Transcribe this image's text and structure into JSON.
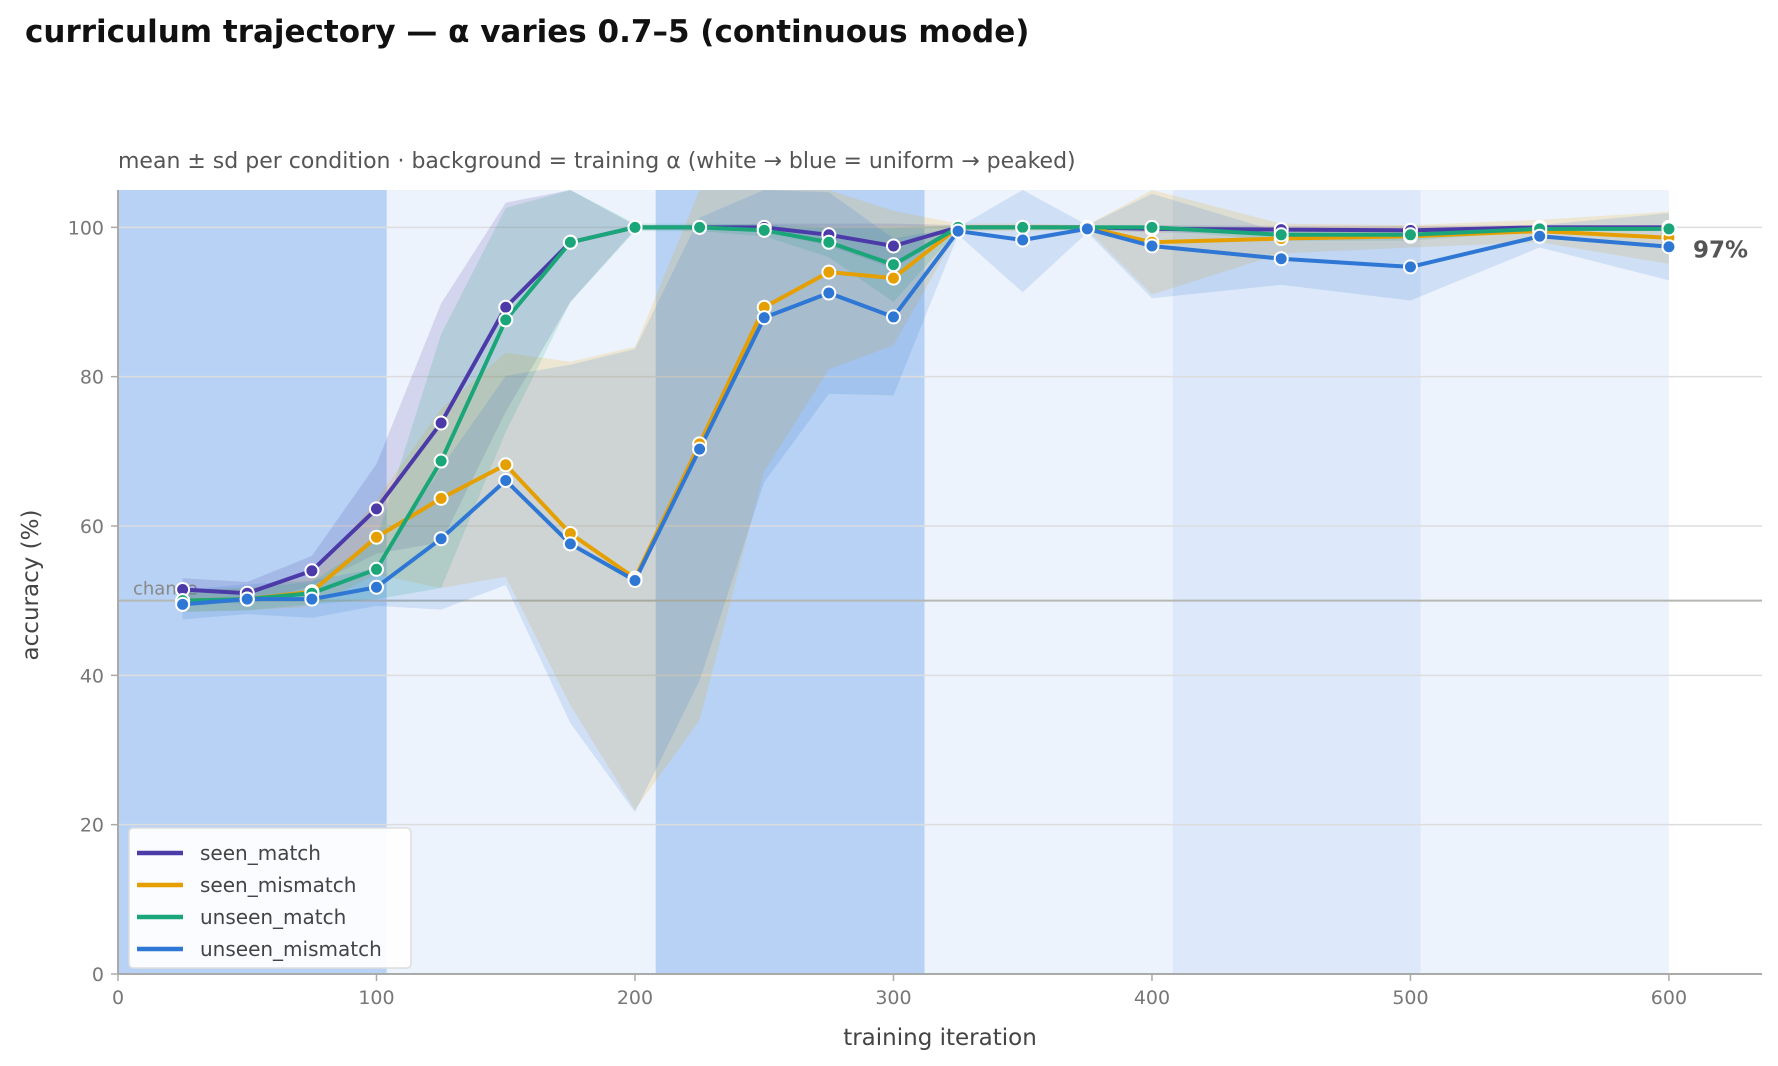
{
  "chart_data": {
    "type": "line",
    "title": "curriculum trajectory — α varies 0.7–5 (continuous mode)",
    "subtitle": "mean ± sd per condition · background = training α (white → blue = uniform → peaked)",
    "xlabel": "training iteration",
    "ylabel": "accuracy (%)",
    "xlim": [
      0,
      636
    ],
    "ylim": [
      0,
      105
    ],
    "xticks": [
      0,
      100,
      200,
      300,
      400,
      500,
      600
    ],
    "yticks": [
      0,
      20,
      40,
      60,
      80,
      100
    ],
    "grid": "horizontal",
    "legend_position": "lower-left",
    "chance": {
      "label": "chance",
      "value": 50
    },
    "end_label": "97%",
    "background_bands": [
      {
        "x0": 0,
        "x1": 104,
        "shade": "peaked",
        "color": "#b7d2f4"
      },
      {
        "x0": 104,
        "x1": 208,
        "shade": "uniform",
        "color": "#edf3fc"
      },
      {
        "x0": 208,
        "x1": 312,
        "shade": "peaked",
        "color": "#b7d2f4"
      },
      {
        "x0": 312,
        "x1": 408,
        "shade": "uniform",
        "color": "#edf3fc"
      },
      {
        "x0": 408,
        "x1": 504,
        "shade": "intermediate",
        "color": "#dde9fa"
      },
      {
        "x0": 504,
        "x1": 600,
        "shade": "uniform",
        "color": "#edf3fc"
      }
    ],
    "x": [
      25,
      50,
      75,
      100,
      125,
      150,
      175,
      200,
      225,
      250,
      275,
      300,
      325,
      350,
      375,
      400,
      450,
      500,
      550,
      600
    ],
    "series": [
      {
        "name": "seen_match",
        "color": "#4b3aa8",
        "values": [
          51.5,
          51.0,
          54.0,
          62.3,
          73.8,
          89.3,
          98.0,
          100,
          100,
          100,
          99.0,
          97.5,
          100,
          100,
          100,
          99.8,
          99.7,
          99.6,
          100,
          100
        ],
        "sd": [
          1.5,
          1.5,
          2.0,
          6.0,
          16.0,
          14.0,
          8.0,
          0.3,
          0.3,
          0.5,
          1.5,
          3.0,
          0.3,
          0.3,
          0.3,
          0.5,
          0.5,
          0.6,
          0.3,
          0.3
        ]
      },
      {
        "name": "seen_mismatch",
        "color": "#e69f00",
        "values": [
          50.0,
          50.2,
          51.2,
          58.5,
          63.7,
          68.2,
          59.0,
          53.0,
          71.0,
          89.3,
          94.0,
          93.2,
          100,
          100,
          100,
          98.0,
          98.5,
          98.8,
          99.5,
          98.6
        ],
        "sd": [
          1.5,
          1.5,
          2.0,
          5.0,
          12.0,
          15.0,
          23.0,
          31.0,
          37.0,
          22.0,
          13.0,
          9.0,
          0.5,
          0.5,
          0.3,
          7.0,
          2.0,
          1.5,
          1.5,
          3.5
        ]
      },
      {
        "name": "unseen_match",
        "color": "#1aa678",
        "values": [
          50.0,
          50.2,
          51.0,
          54.2,
          68.7,
          87.6,
          98.0,
          100,
          100,
          99.6,
          98.0,
          95.0,
          100,
          100,
          100,
          100,
          99.0,
          99.0,
          99.8,
          99.8
        ],
        "sd": [
          1.5,
          1.5,
          1.5,
          4.0,
          17.0,
          15.0,
          8.0,
          0.5,
          0.5,
          0.8,
          2.0,
          5.0,
          0.3,
          0.3,
          0.3,
          0.3,
          0.8,
          0.8,
          0.3,
          0.3
        ]
      },
      {
        "name": "unseen_mismatch",
        "color": "#2f77d4",
        "values": [
          49.5,
          50.2,
          50.2,
          51.8,
          58.3,
          66.1,
          57.6,
          52.7,
          70.3,
          87.9,
          91.2,
          88.0,
          99.5,
          98.3,
          99.8,
          97.5,
          95.8,
          94.7,
          98.8,
          97.4
        ],
        "sd": [
          2.0,
          2.0,
          2.5,
          2.5,
          9.5,
          14.0,
          24.0,
          31.0,
          31.0,
          22.0,
          13.5,
          10.5,
          0.5,
          7.0,
          0.5,
          7.0,
          3.5,
          4.5,
          1.5,
          4.5
        ]
      }
    ]
  }
}
